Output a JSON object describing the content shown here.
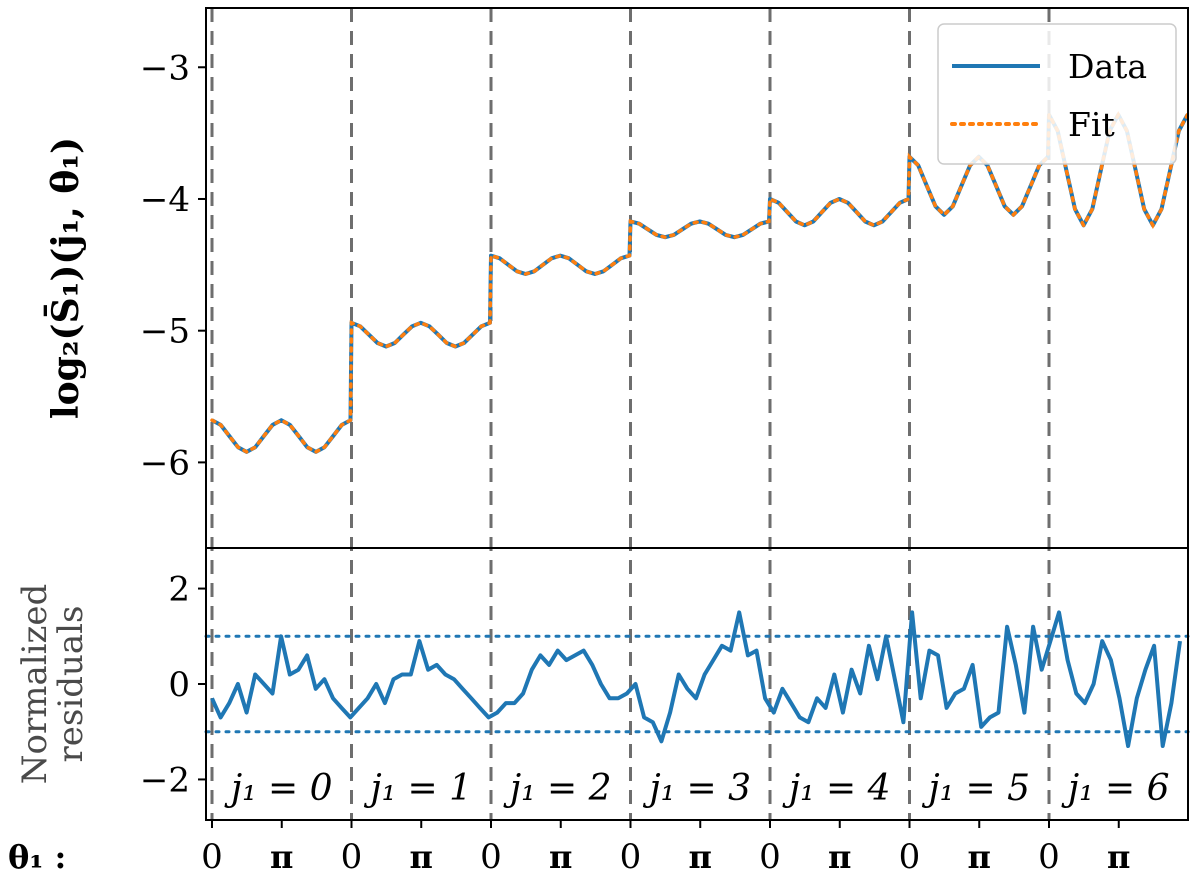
{
  "chart_data": {
    "type": "line",
    "top_panel": {
      "ylabel": "log₂(S̄₁)(j₁, θ₁)",
      "ylim": [
        -6.65,
        -2.55
      ],
      "yticks": [
        -6,
        -5,
        -4,
        -3
      ],
      "ytick_labels": [
        "−6",
        "−5",
        "−4",
        "−3"
      ],
      "legend": {
        "position": "top-right",
        "entries": [
          "Data",
          "Fit"
        ]
      },
      "series": [
        {
          "name": "Data",
          "style": "solid",
          "color": "#1f77b4"
        },
        {
          "name": "Fit",
          "style": "dotted",
          "color": "#ff7f0e"
        }
      ],
      "blocks": [
        {
          "j1": 0,
          "level": -5.8,
          "amplitude": 0.12,
          "slope": 0.0,
          "wiggles": 2
        },
        {
          "j1": 1,
          "level": -5.03,
          "amplitude": 0.09,
          "slope": 0.0,
          "wiggles": 2
        },
        {
          "j1": 2,
          "level": -4.5,
          "amplitude": 0.07,
          "slope": 0.0,
          "wiggles": 2
        },
        {
          "j1": 3,
          "level": -4.23,
          "amplitude": 0.06,
          "slope": 0.0,
          "wiggles": 2
        },
        {
          "j1": 4,
          "level": -4.1,
          "amplitude": 0.1,
          "slope": 0.0,
          "wiggles": 2
        },
        {
          "j1": 5,
          "level": -3.9,
          "amplitude": 0.22,
          "slope": 0.0,
          "wiggles": 2
        },
        {
          "j1": 6,
          "level": -3.78,
          "amplitude": 0.42,
          "slope": 0.0,
          "wiggles": 2
        }
      ]
    },
    "bottom_panel": {
      "ylabel_line1": "Normalized",
      "ylabel_line2": "residuals",
      "ylim": [
        -2.85,
        2.85
      ],
      "yticks": [
        -2,
        0,
        2
      ],
      "ytick_labels": [
        "−2",
        "0",
        "2"
      ],
      "reference_lines": [
        1,
        -1
      ],
      "residuals": [
        -0.3,
        -0.7,
        -0.4,
        0.0,
        -0.6,
        0.2,
        0.0,
        -0.2,
        1.0,
        0.2,
        0.3,
        0.6,
        -0.1,
        0.1,
        -0.3,
        -0.5,
        -0.7,
        -0.5,
        -0.3,
        0.0,
        -0.4,
        0.1,
        0.2,
        0.2,
        0.9,
        0.3,
        0.4,
        0.2,
        0.1,
        -0.1,
        -0.3,
        -0.5,
        -0.7,
        -0.6,
        -0.4,
        -0.4,
        -0.2,
        0.3,
        0.6,
        0.4,
        0.7,
        0.5,
        0.6,
        0.7,
        0.4,
        0.0,
        -0.3,
        -0.3,
        -0.2,
        0.0,
        -0.7,
        -0.8,
        -1.2,
        -0.6,
        0.2,
        -0.1,
        -0.3,
        0.2,
        0.5,
        0.8,
        0.7,
        1.5,
        0.6,
        0.7,
        -0.3,
        -0.6,
        -0.1,
        -0.4,
        -0.7,
        -0.8,
        -0.3,
        -0.5,
        0.2,
        -0.6,
        0.3,
        -0.2,
        0.8,
        0.1,
        1.0,
        0.1,
        -0.8,
        1.5,
        -0.3,
        0.7,
        0.6,
        -0.5,
        -0.2,
        -0.1,
        0.4,
        -0.9,
        -0.7,
        -0.6,
        1.2,
        0.4,
        -0.6,
        1.2,
        0.3,
        0.9,
        1.5,
        0.5,
        -0.2,
        -0.4,
        0.0,
        0.9,
        0.5,
        -0.3,
        -1.3,
        -0.3,
        0.3,
        0.8,
        -1.3,
        -0.4,
        0.9
      ]
    },
    "x_axis": {
      "theta_prefix": "θ₁ :",
      "tick_labels_per_block": [
        "0",
        "π"
      ],
      "block_labels": [
        "j₁ = 0",
        "j₁ = 1",
        "j₁ = 2",
        "j₁ = 3",
        "j₁ = 4",
        "j₁ = 5",
        "j₁ = 6"
      ]
    }
  }
}
